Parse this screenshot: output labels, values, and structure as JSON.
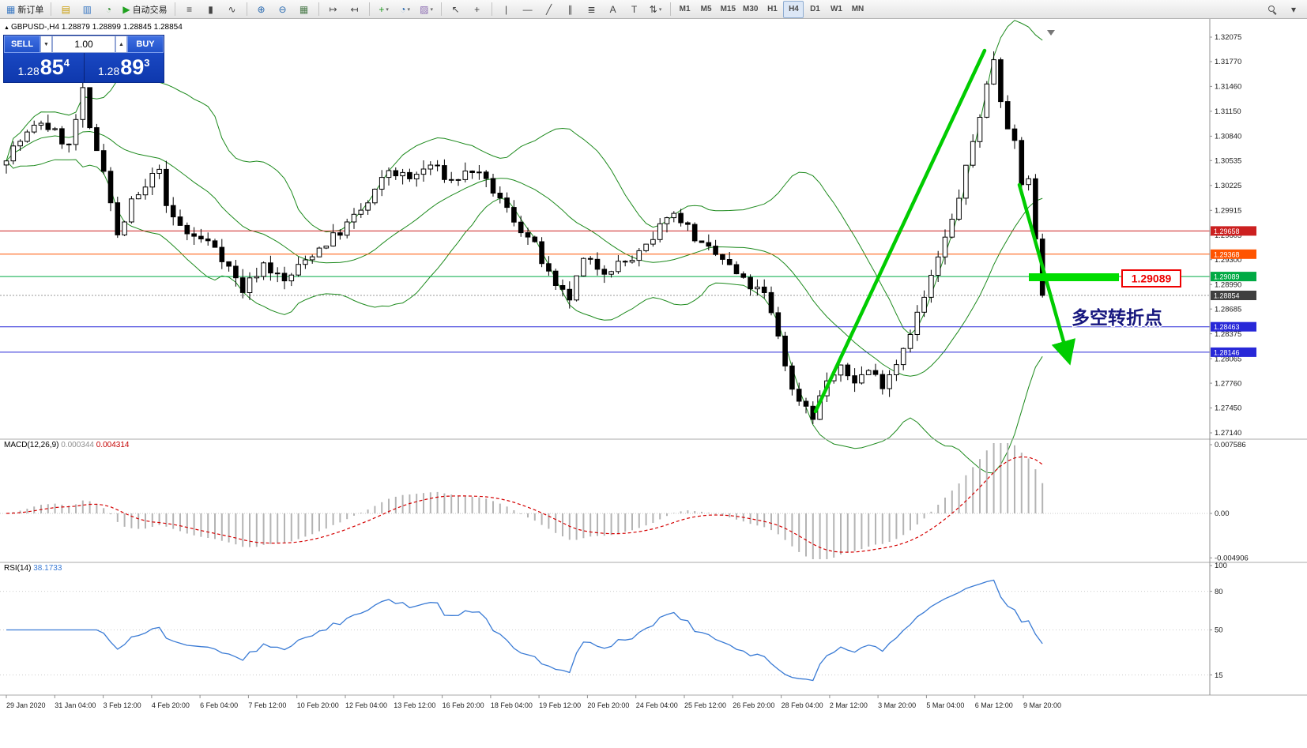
{
  "colors": {
    "bull_candle": "#ffffff",
    "bear_candle": "#000000",
    "candle_outline": "#000000",
    "bollinger": "#1d8a1d",
    "macd_histogram": "#b4b4b4",
    "macd_signal": "#d40000",
    "rsi_line": "#3a7bd5",
    "annotation_green": "#00cc00",
    "highlight_green": "#00dd00",
    "callout_red": "#ee0000",
    "turning_text": "#16167e",
    "panel_blue": "#1b49c4"
  },
  "toolbar": {
    "groups": [
      {
        "items": [
          {
            "name": "new-order-button",
            "glyph": "▦",
            "glyph_color": "#3a78c2",
            "label": "新订单"
          }
        ]
      },
      {
        "items": [
          {
            "name": "market-watch-button",
            "glyph": "▤",
            "glyph_color": "#c89a00"
          },
          {
            "name": "data-window-button",
            "glyph": "▥",
            "glyph_color": "#3a78c2"
          },
          {
            "name": "history-center-button",
            "glyph": "◔",
            "glyph_color": "#2d8a2d"
          },
          {
            "name": "autotrading-button",
            "glyph": "▶",
            "glyph_color": "#1fa11f",
            "label": "自动交易"
          }
        ]
      },
      {
        "items": [
          {
            "name": "bar-chart-button",
            "glyph": "≡"
          },
          {
            "name": "candlestick-chart-button",
            "glyph": "▮"
          },
          {
            "name": "line-chart-button",
            "glyph": "∿"
          }
        ]
      },
      {
        "items": [
          {
            "name": "zoom-in-button",
            "glyph": "⊕",
            "glyph_color": "#2a6ab0"
          },
          {
            "name": "zoom-out-button",
            "glyph": "⊖",
            "glyph_color": "#2a6ab0"
          },
          {
            "name": "tile-windows-button",
            "glyph": "▦",
            "glyph_color": "#4a7a4a"
          }
        ]
      },
      {
        "items": [
          {
            "name": "auto-scroll-button",
            "glyph": "↦"
          },
          {
            "name": "chart-shift-button",
            "glyph": "↤"
          }
        ]
      },
      {
        "items": [
          {
            "name": "indicators-button",
            "glyph": "+",
            "glyph_color": "#1f9a1f",
            "caret": true
          },
          {
            "name": "periods-button",
            "glyph": "◔",
            "glyph_color": "#2a6ab0",
            "caret": true
          },
          {
            "name": "templates-button",
            "glyph": "▨",
            "glyph_color": "#8a6ab0",
            "caret": true
          }
        ]
      },
      {
        "items": [
          {
            "name": "cursor-button",
            "glyph": "↖"
          },
          {
            "name": "crosshair-button",
            "glyph": "+"
          }
        ]
      },
      {
        "items": [
          {
            "name": "vertical-line-button",
            "glyph": "|"
          },
          {
            "name": "horizontal-line-button",
            "glyph": "—"
          },
          {
            "name": "trendline-button",
            "glyph": "╱"
          },
          {
            "name": "equidistant-channel-button",
            "glyph": "∥"
          },
          {
            "name": "fibonacci-button",
            "glyph": "≣"
          },
          {
            "name": "text-button",
            "glyph": "A"
          },
          {
            "name": "text-label-button",
            "glyph": "T"
          },
          {
            "name": "arrow-tools-button",
            "glyph": "⇅",
            "caret": true
          }
        ]
      },
      {
        "items": [
          {
            "name": "tf-m1-button",
            "tf": "M1"
          },
          {
            "name": "tf-m5-button",
            "tf": "M5"
          },
          {
            "name": "tf-m15-button",
            "tf": "M15"
          },
          {
            "name": "tf-m30-button",
            "tf": "M30"
          },
          {
            "name": "tf-h1-button",
            "tf": "H1"
          },
          {
            "name": "tf-h4-button",
            "tf": "H4",
            "active": true
          },
          {
            "name": "tf-d1-button",
            "tf": "D1"
          },
          {
            "name": "tf-w1-button",
            "tf": "W1"
          },
          {
            "name": "tf-mn-button",
            "tf": "MN"
          }
        ]
      },
      {
        "right": true,
        "items": [
          {
            "name": "search-button",
            "icon": "magnifier"
          },
          {
            "name": "quick-menu-button",
            "glyph": "▾"
          }
        ]
      }
    ]
  },
  "chart": {
    "header": "GBPUSD-,H4  1.28879 1.28899 1.28845 1.28854",
    "symbol_marker": "▲"
  },
  "quote_panel": {
    "sell_label": "SELL",
    "buy_label": "BUY",
    "volume": "1.00",
    "sell_price": {
      "prefix": "1.28",
      "big": "85",
      "sup": "4"
    },
    "buy_price": {
      "prefix": "1.28",
      "big": "89",
      "sup": "3"
    }
  },
  "indicators": {
    "macd": {
      "name": "MACD(12,26,9)",
      "value1": "0.000344",
      "value2": "0.004314",
      "axis": [
        {
          "label": "0.007586",
          "value": 0.007586
        },
        {
          "label": "0.00",
          "value": 0
        },
        {
          "label": "-0.004906",
          "value": -0.004906
        }
      ]
    },
    "rsi": {
      "name": "RSI(14)",
      "value": "38.1733",
      "axis": [
        {
          "label": "100",
          "value": 100
        },
        {
          "label": "80",
          "value": 80
        },
        {
          "label": "50",
          "value": 50
        },
        {
          "label": "15",
          "value": 15
        }
      ],
      "levels": [
        80,
        50,
        15
      ]
    }
  },
  "chart_data": {
    "type": "candlestick",
    "symbol": "GBPUSD-",
    "timeframe": "H4",
    "open": "1.28879",
    "high": "1.28899",
    "low": "1.28845",
    "close": "1.28854",
    "price_range": {
      "max": 1.32075,
      "min": 1.2714
    },
    "price_axis_labels": [
      "1.32075",
      "1.31770",
      "1.31460",
      "1.31150",
      "1.30840",
      "1.30535",
      "1.30225",
      "1.29915",
      "1.29605",
      "1.29300",
      "1.28990",
      "1.28685",
      "1.28375",
      "1.28065",
      "1.27760",
      "1.27450",
      "1.27140"
    ],
    "levels": [
      {
        "value": 1.29658,
        "label": "1.29658",
        "color": "#cc2020"
      },
      {
        "value": 1.29368,
        "label": "1.29368",
        "color": "#ff5400"
      },
      {
        "value": 1.29089,
        "label": "1.29089",
        "color": "#00aa44"
      },
      {
        "value": 1.28463,
        "label": "1.28463",
        "color": "#2828d8"
      },
      {
        "value": 1.28146,
        "label": "1.28146",
        "color": "#2828d8"
      }
    ],
    "current_price": {
      "value": 1.28854,
      "label": "1.28854",
      "color": "#3f3f3f"
    },
    "candle_count": 150,
    "price_anchors": [
      [
        0,
        1.306
      ],
      [
        2,
        1.3078
      ],
      [
        5,
        1.3102
      ],
      [
        7,
        1.3088
      ],
      [
        9,
        1.307
      ],
      [
        11,
        1.3138
      ],
      [
        12,
        1.309
      ],
      [
        14,
        1.3046
      ],
      [
        16,
        1.2958
      ],
      [
        18,
        1.3
      ],
      [
        20,
        1.3018
      ],
      [
        22,
        1.3048
      ],
      [
        23,
        1.2992
      ],
      [
        26,
        1.2962
      ],
      [
        30,
        1.2948
      ],
      [
        34,
        1.2892
      ],
      [
        37,
        1.2925
      ],
      [
        40,
        1.2902
      ],
      [
        44,
        1.2938
      ],
      [
        48,
        1.2965
      ],
      [
        52,
        1.3
      ],
      [
        55,
        1.3042
      ],
      [
        58,
        1.303
      ],
      [
        61,
        1.3048
      ],
      [
        64,
        1.3028
      ],
      [
        67,
        1.3042
      ],
      [
        70,
        1.3016
      ],
      [
        73,
        1.298
      ],
      [
        76,
        1.2946
      ],
      [
        79,
        1.2892
      ],
      [
        81,
        1.2882
      ],
      [
        83,
        1.2928
      ],
      [
        86,
        1.2918
      ],
      [
        90,
        1.293
      ],
      [
        93,
        1.2952
      ],
      [
        95,
        1.2988
      ],
      [
        97,
        1.2982
      ],
      [
        100,
        1.2946
      ],
      [
        103,
        1.293
      ],
      [
        106,
        1.2902
      ],
      [
        109,
        1.2886
      ],
      [
        111,
        1.2836
      ],
      [
        113,
        1.2766
      ],
      [
        115,
        1.2748
      ],
      [
        116,
        1.2736
      ],
      [
        118,
        1.278
      ],
      [
        120,
        1.2792
      ],
      [
        122,
        1.278
      ],
      [
        124,
        1.2792
      ],
      [
        126,
        1.2776
      ],
      [
        128,
        1.2802
      ],
      [
        130,
        1.2842
      ],
      [
        132,
        1.2882
      ],
      [
        134,
        1.2932
      ],
      [
        136,
        1.2978
      ],
      [
        138,
        1.3042
      ],
      [
        140,
        1.3112
      ],
      [
        142,
        1.3182
      ],
      [
        143,
        1.3132
      ],
      [
        144,
        1.31
      ],
      [
        145,
        1.3072
      ],
      [
        146,
        1.3022
      ],
      [
        147,
        1.3034
      ],
      [
        148,
        1.2952
      ],
      [
        149,
        1.28854
      ]
    ],
    "bollinger": {
      "period": 20,
      "deviations": 2
    },
    "time_labels": [
      "29 Jan 2020",
      "31 Jan 04:00",
      "3 Feb 12:00",
      "4 Feb 20:00",
      "6 Feb 04:00",
      "7 Feb 12:00",
      "10 Feb 20:00",
      "12 Feb 04:00",
      "13 Feb 12:00",
      "16 Feb 20:00",
      "18 Feb 04:00",
      "19 Feb 12:00",
      "20 Feb 20:00",
      "24 Feb 04:00",
      "25 Feb 12:00",
      "26 Feb 20:00",
      "28 Feb 04:00",
      "2 Mar 12:00",
      "3 Mar 20:00",
      "5 Mar 04:00",
      "6 Mar 12:00",
      "9 Mar 20:00"
    ],
    "annotations": {
      "turning_point_text": "多空转折点",
      "price_callout": "1.29089",
      "highlight_level": 1.29089
    }
  }
}
